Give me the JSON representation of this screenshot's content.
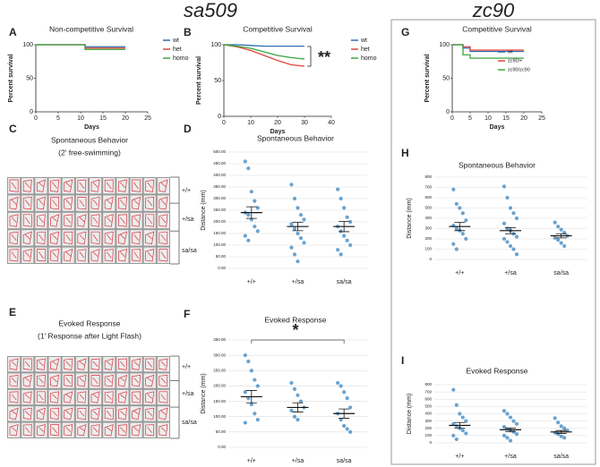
{
  "headers": [
    "sa509",
    "zc90"
  ],
  "figures": [
    {
      "panel": "C",
      "title": "Spontaneous Behavior",
      "subtitle": "(2' free-swimming)",
      "row_labels": [
        "+/+",
        "+/sa",
        "sa/sa"
      ]
    },
    {
      "panel": "E",
      "title": "Evoked Response",
      "subtitle": "(1' Response after Light Flash)",
      "row_labels": [
        "+/+",
        "+/sa",
        "sa/sa"
      ]
    }
  ],
  "chart_data": [
    {
      "type": "line",
      "panel": "A",
      "title": "Non-competitive Survival",
      "x_label": "Days",
      "y_label": "Percent survival",
      "x": [
        0,
        11,
        11,
        20
      ],
      "xlim": [
        0,
        25
      ],
      "xticks": [
        0,
        5,
        10,
        15,
        20,
        25
      ],
      "ylim": [
        0,
        100
      ],
      "yticks": [
        0,
        50,
        100
      ],
      "legend": "right",
      "series": [
        {
          "name": "wt",
          "color": "#2e6db4",
          "values": [
            100,
            100,
            97,
            97
          ]
        },
        {
          "name": "het",
          "color": "#e0453a",
          "values": [
            100,
            100,
            95,
            95
          ]
        },
        {
          "name": "homo",
          "color": "#3aa53a",
          "values": [
            100,
            100,
            93,
            93
          ]
        }
      ]
    },
    {
      "type": "line",
      "panel": "B",
      "title": "Competitive Survival",
      "x_label": "Days",
      "y_label": "Percent survival",
      "annotation": "**",
      "x": [
        0,
        5,
        10,
        15,
        20,
        25,
        30
      ],
      "xlim": [
        0,
        40
      ],
      "xticks": [
        0,
        10,
        20,
        30,
        40
      ],
      "ylim": [
        0,
        100
      ],
      "yticks": [
        0,
        50,
        100
      ],
      "legend": "right",
      "series": [
        {
          "name": "wt",
          "color": "#2e6db4",
          "values": [
            100,
            100,
            99,
            98,
            98,
            98,
            98
          ]
        },
        {
          "name": "het",
          "color": "#e0453a",
          "values": [
            100,
            97,
            92,
            85,
            78,
            72,
            70
          ]
        },
        {
          "name": "homo",
          "color": "#3aa53a",
          "values": [
            100,
            98,
            95,
            90,
            85,
            82,
            80
          ]
        }
      ]
    },
    {
      "type": "line",
      "panel": "G",
      "title": "Competitive Survival",
      "x_label": "Days",
      "y_label": "Percent survival",
      "x": [
        0,
        3,
        3,
        5,
        5,
        20
      ],
      "xlim": [
        0,
        25
      ],
      "xticks": [
        0,
        5,
        10,
        15,
        20,
        25
      ],
      "ylim": [
        0,
        100
      ],
      "yticks": [
        0,
        50,
        100
      ],
      "legend": "upper right",
      "series": [
        {
          "name": "wt",
          "color": "#2e6db4",
          "values": [
            100,
            100,
            95,
            95,
            90,
            90
          ]
        },
        {
          "name": "zc90/+",
          "color": "#e0453a",
          "values": [
            100,
            100,
            97,
            97,
            92,
            92
          ]
        },
        {
          "name": "zc90/zc90",
          "color": "#3aa53a",
          "values": [
            100,
            100,
            85,
            85,
            80,
            80
          ]
        }
      ]
    },
    {
      "type": "strip",
      "panel": "D",
      "title": "Spontaneous Behavior",
      "y_label": "Distance (mm)",
      "color": "#4f93c9",
      "grid": true,
      "categories": [
        "+/+",
        "+/sa",
        "sa/sa"
      ],
      "ylim": [
        0,
        500
      ],
      "yticks": [
        {
          "value": 0,
          "label": "0.00"
        },
        {
          "value": 50,
          "label": "50.00"
        },
        {
          "value": 100,
          "label": "100.00"
        },
        {
          "value": 150,
          "label": "150.00"
        },
        {
          "value": 200,
          "label": "200.00"
        },
        {
          "value": 250,
          "label": "250.00"
        },
        {
          "value": 300,
          "label": "300.00"
        },
        {
          "value": 350,
          "label": "350.00"
        },
        {
          "value": 400,
          "label": "400.00"
        },
        {
          "value": 450,
          "label": "450.00"
        },
        {
          "value": 500,
          "label": "500.00"
        }
      ],
      "points": [
        [
          460,
          430,
          330,
          290,
          260,
          240,
          230,
          210,
          180,
          160,
          140,
          120
        ],
        [
          360,
          300,
          260,
          230,
          210,
          190,
          170,
          150,
          130,
          110,
          90,
          60,
          30
        ],
        [
          340,
          300,
          260,
          220,
          200,
          180,
          160,
          140,
          120,
          100,
          80,
          60
        ]
      ],
      "means": [
        240,
        180,
        180
      ],
      "sem": [
        25,
        18,
        22
      ]
    },
    {
      "type": "strip",
      "panel": "F",
      "title": "Evoked Response",
      "y_label": "Distance (mm)",
      "color": "#4f93c9",
      "grid": true,
      "annotation": "*",
      "categories": [
        "+/+",
        "+/sa",
        "sa/sa"
      ],
      "ylim": [
        0,
        350
      ],
      "yticks": [
        {
          "value": 0,
          "label": "0.00"
        },
        {
          "value": 50,
          "label": "50.00"
        },
        {
          "value": 100,
          "label": "100.00"
        },
        {
          "value": 150,
          "label": "150.00"
        },
        {
          "value": 200,
          "label": "200.00"
        },
        {
          "value": 250,
          "label": "250.00"
        },
        {
          "value": 300,
          "label": "300.00"
        },
        {
          "value": 350,
          "label": "350.00"
        }
      ],
      "points": [
        [
          300,
          280,
          250,
          220,
          200,
          180,
          160,
          140,
          110,
          90,
          80
        ],
        [
          210,
          190,
          170,
          150,
          130,
          120,
          100,
          90
        ],
        [
          210,
          200,
          180,
          160,
          130,
          110,
          90,
          70,
          60,
          50
        ]
      ],
      "means": [
        165,
        130,
        110
      ],
      "sem": [
        20,
        15,
        15
      ]
    },
    {
      "type": "strip",
      "panel": "H",
      "title": "Spontaneous Behavior",
      "y_label": "Distance (mm)",
      "color": "#4f93c9",
      "grid": true,
      "categories": [
        "+/+",
        "+/sa",
        "sa/sa"
      ],
      "ylim": [
        0,
        800
      ],
      "yticks": [
        0,
        100,
        200,
        300,
        400,
        500,
        600,
        700,
        800
      ],
      "points": [
        [
          680,
          540,
          500,
          450,
          380,
          330,
          300,
          280,
          250,
          200,
          150,
          100
        ],
        [
          710,
          600,
          500,
          450,
          400,
          350,
          300,
          280,
          250,
          220,
          200,
          170,
          130,
          100,
          50
        ],
        [
          360,
          320,
          290,
          260,
          230,
          210,
          190,
          160,
          130
        ]
      ],
      "means": [
        320,
        280,
        230
      ],
      "sem": [
        40,
        30,
        20
      ]
    },
    {
      "type": "strip",
      "panel": "I",
      "title": "Evoked Response",
      "y_label": "Distance (mm)",
      "color": "#4f93c9",
      "grid": true,
      "categories": [
        "+/+",
        "+/sa",
        "sa/sa"
      ],
      "ylim": [
        0,
        800
      ],
      "yticks": [
        0,
        100,
        200,
        300,
        400,
        500,
        600,
        700,
        800
      ],
      "points": [
        [
          730,
          520,
          400,
          350,
          300,
          260,
          230,
          200,
          170,
          130,
          100,
          50
        ],
        [
          440,
          400,
          350,
          300,
          260,
          220,
          190,
          170,
          150,
          120,
          100,
          70,
          30
        ],
        [
          340,
          280,
          230,
          200,
          170,
          140,
          120,
          90,
          70
        ]
      ],
      "means": [
        240,
        180,
        150
      ],
      "sem": [
        40,
        25,
        20
      ]
    }
  ]
}
